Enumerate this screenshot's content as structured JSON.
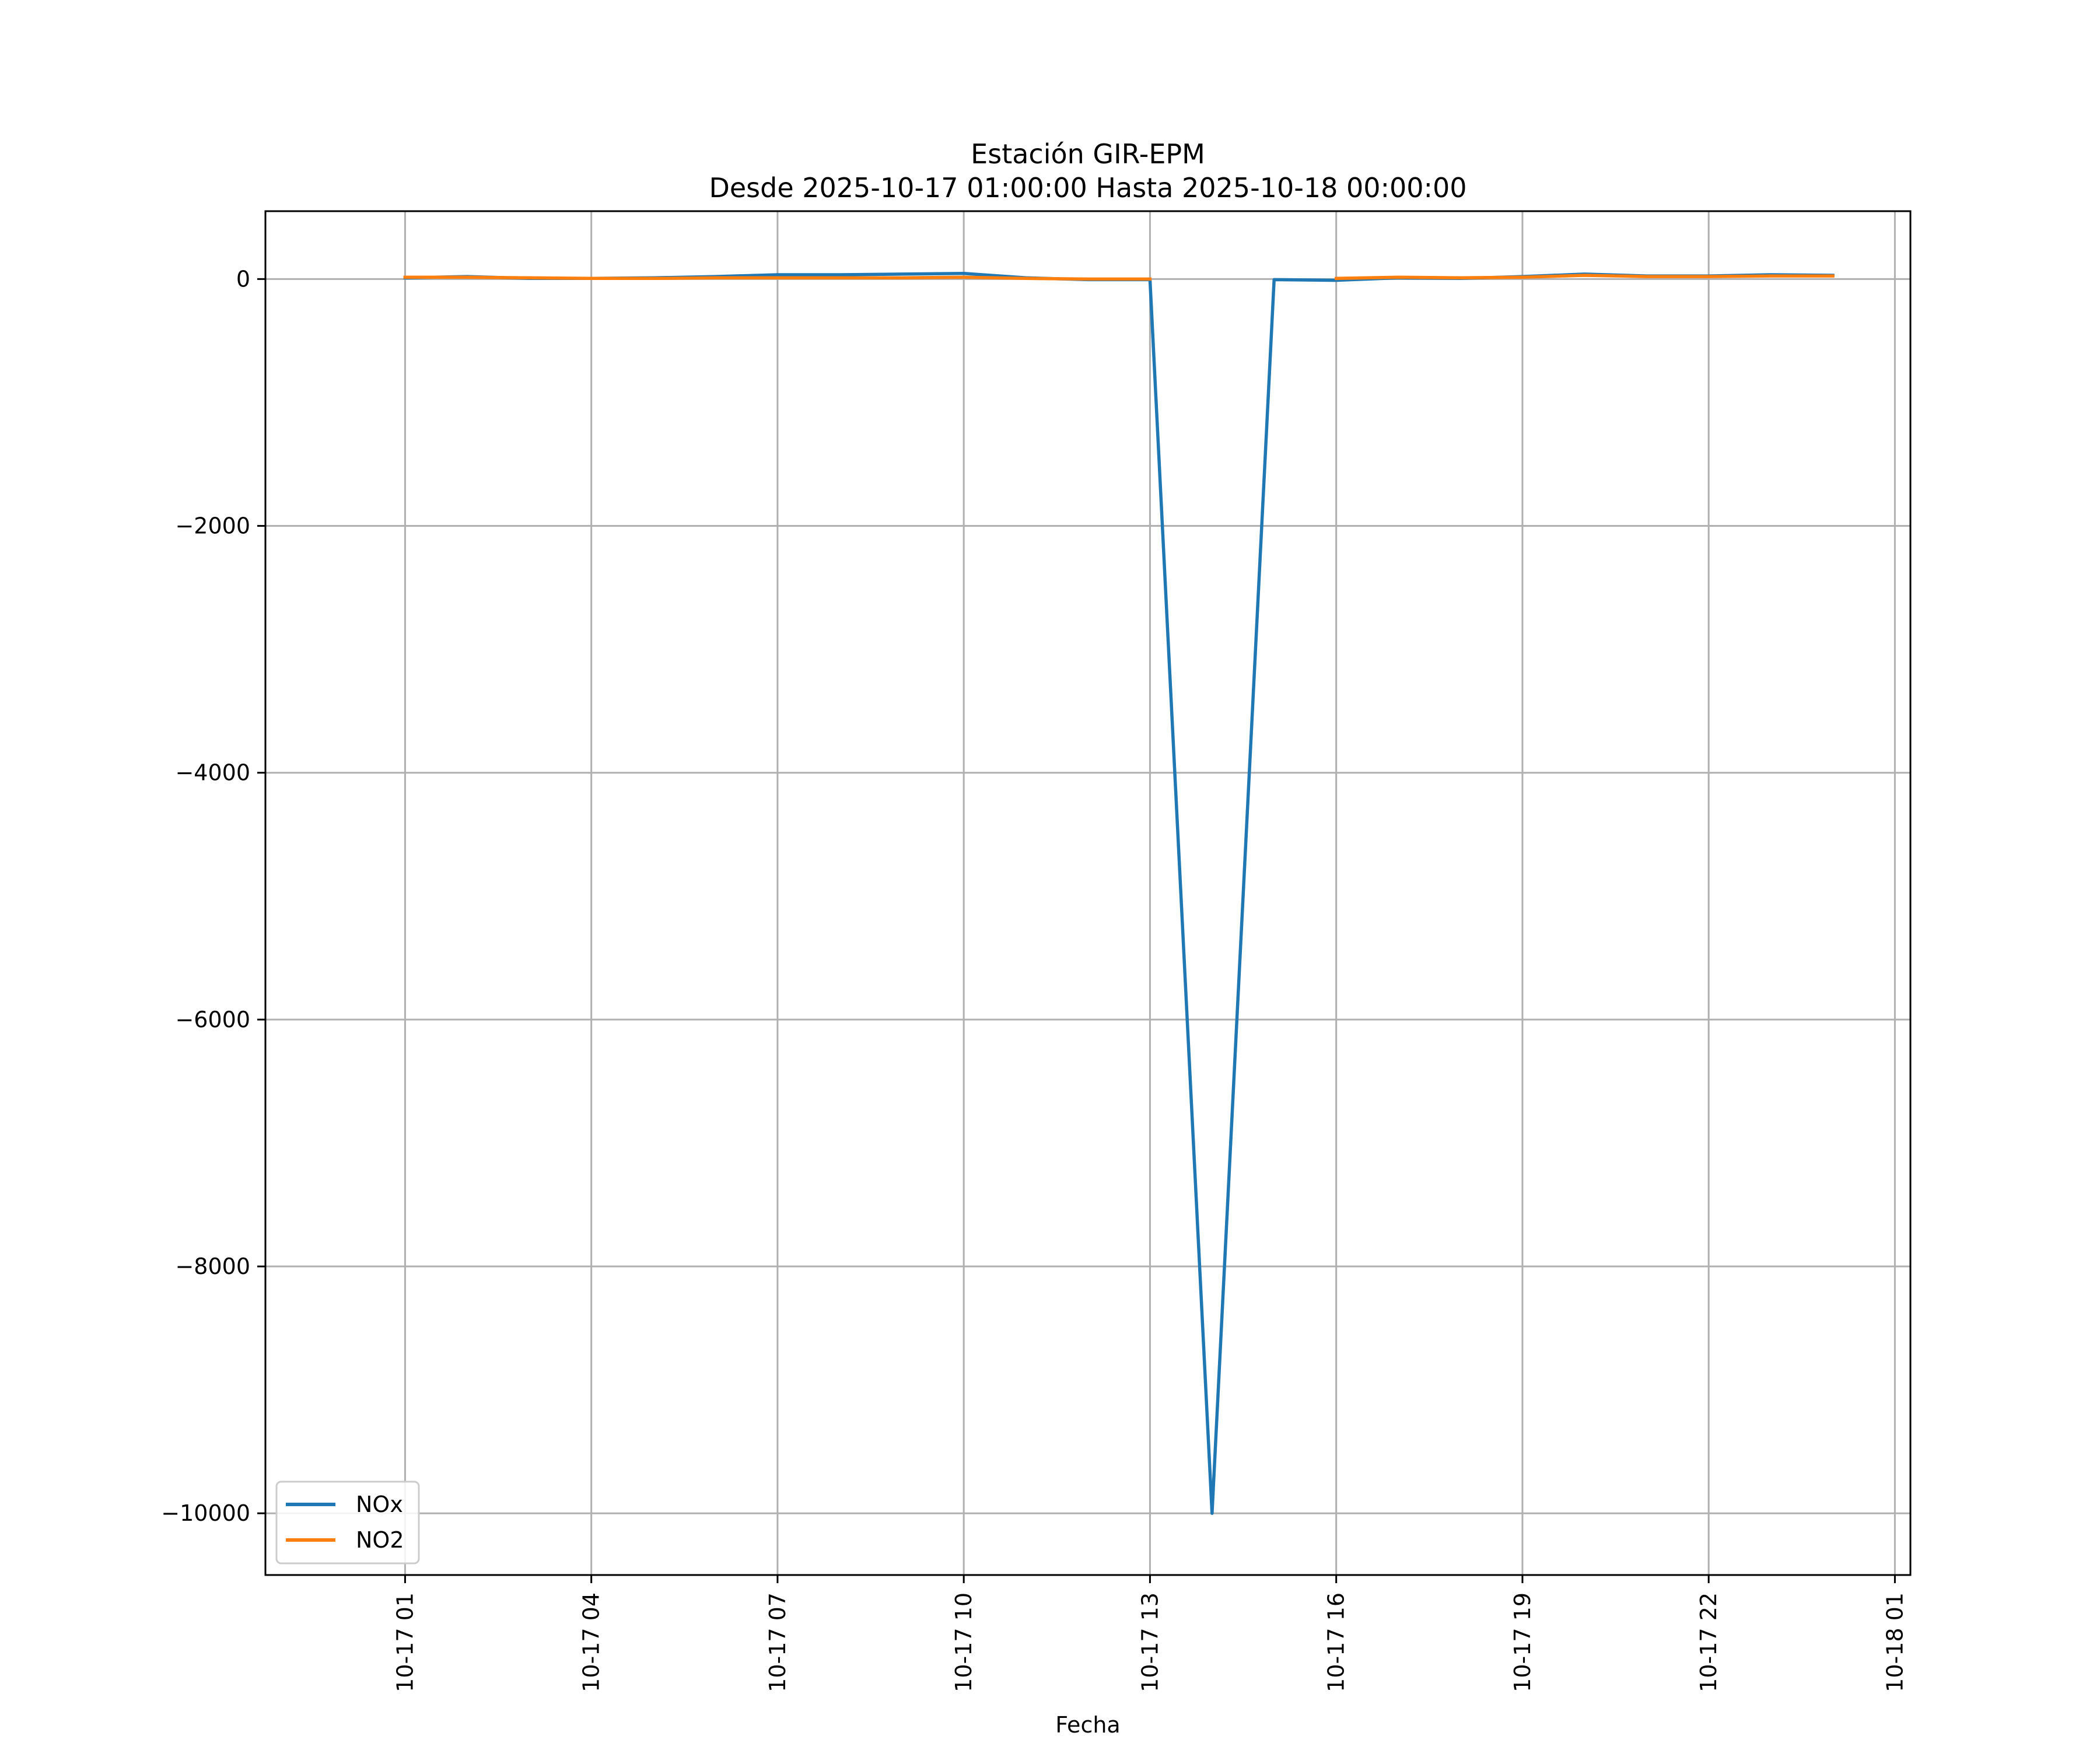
{
  "chart_data": {
    "type": "line",
    "title": "Estación GIR-EPM",
    "subtitle": "Desde 2025-10-17 01:00:00 Hasta 2025-10-18 00:00:00",
    "xlabel": "Fecha",
    "ylabel": "",
    "grid": true,
    "legend_position": "lower-left",
    "x_tick_labels": [
      "10-17 01",
      "10-17 04",
      "10-17 07",
      "10-17 10",
      "10-17 13",
      "10-17 16",
      "10-17 19",
      "10-17 22",
      "10-18 01"
    ],
    "x_ticks": [
      "2025-10-17 01:00",
      "2025-10-17 04:00",
      "2025-10-17 07:00",
      "2025-10-17 10:00",
      "2025-10-17 13:00",
      "2025-10-17 16:00",
      "2025-10-17 19:00",
      "2025-10-17 22:00",
      "2025-10-18 01:00"
    ],
    "y_ticks": [
      0,
      -2000,
      -4000,
      -6000,
      -8000,
      -10000
    ],
    "y_tick_labels": [
      "0",
      "−2000",
      "−4000",
      "−6000",
      "−8000",
      "−10000"
    ],
    "xlim": [
      "2025-10-16 22:45",
      "2025-10-18 01:15"
    ],
    "ylim": [
      -10500,
      550
    ],
    "x": [
      "2025-10-17 01:00",
      "2025-10-17 02:00",
      "2025-10-17 03:00",
      "2025-10-17 04:00",
      "2025-10-17 05:00",
      "2025-10-17 06:00",
      "2025-10-17 07:00",
      "2025-10-17 08:00",
      "2025-10-17 09:00",
      "2025-10-17 10:00",
      "2025-10-17 11:00",
      "2025-10-17 12:00",
      "2025-10-17 13:00",
      "2025-10-17 14:00",
      "2025-10-17 15:00",
      "2025-10-17 16:00",
      "2025-10-17 17:00",
      "2025-10-17 18:00",
      "2025-10-17 19:00",
      "2025-10-17 20:00",
      "2025-10-17 21:00",
      "2025-10-17 22:00",
      "2025-10-17 23:00",
      "2025-10-18 00:00"
    ],
    "series": [
      {
        "name": "NOx",
        "color": "#1f77b4",
        "values": [
          10,
          20,
          5,
          5,
          10,
          20,
          35,
          35,
          40,
          45,
          10,
          -5,
          -5,
          -10000,
          -5,
          -10,
          10,
          5,
          20,
          40,
          25,
          25,
          35,
          30
        ]
      },
      {
        "name": "NO2",
        "color": "#ff7f0e",
        "values": [
          15,
          15,
          10,
          5,
          5,
          10,
          10,
          10,
          10,
          15,
          5,
          0,
          0,
          null,
          null,
          5,
          15,
          10,
          15,
          30,
          20,
          20,
          25,
          25
        ]
      }
    ]
  }
}
